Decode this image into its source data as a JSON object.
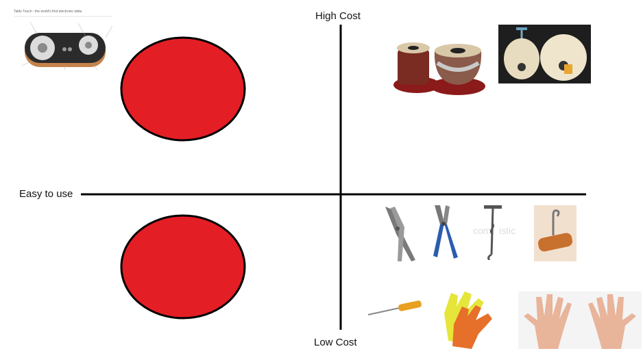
{
  "axes": {
    "top_label": "High Cost",
    "bottom_label": "Low Cost",
    "left_label": "Easy to use"
  },
  "product_image": {
    "caption": "Table Touch - the world's first electronic tabla"
  },
  "colors": {
    "marker_fill": "#e41e25",
    "marker_stroke": "#000000",
    "axis": "#000000"
  },
  "pictures": [
    "electronic-tabla-device",
    "tabla-drums",
    "tabla-tuning-drums",
    "locking-pliers",
    "combination-pliers",
    "hook-tool",
    "hook-handle-tool",
    "screwdriver",
    "work-gloves",
    "hands"
  ]
}
